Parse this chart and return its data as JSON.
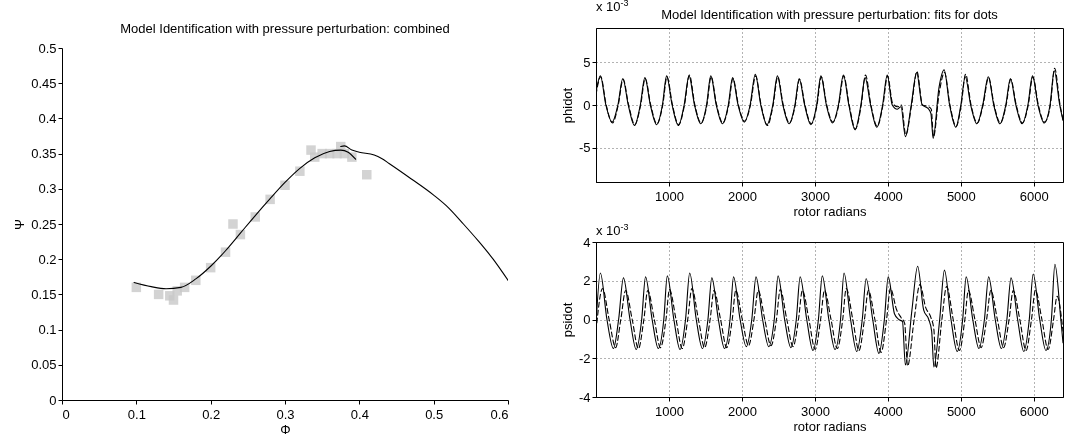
{
  "chart_data": [
    {
      "type": "line",
      "title": "Model Identification with pressure perturbation: combined",
      "xlabel": "Φ",
      "ylabel": "Ψ",
      "xlim": [
        0,
        0.6
      ],
      "ylim": [
        0,
        0.5
      ],
      "xticks": [
        0,
        0.1,
        0.2,
        0.3,
        0.4,
        0.5,
        0.6
      ],
      "yticks": [
        0,
        0.05,
        0.1,
        0.15,
        0.2,
        0.25,
        0.3,
        0.35,
        0.4,
        0.45,
        0.5
      ],
      "grid": false,
      "marker": "none",
      "series": [
        {
          "type": "scatter",
          "marker": "square",
          "color": "#c8c8c8",
          "x": [
            0.1,
            0.13,
            0.145,
            0.155,
            0.165,
            0.15,
            0.18,
            0.2,
            0.22,
            0.23,
            0.24,
            0.26,
            0.28,
            0.3,
            0.32,
            0.335,
            0.34,
            0.35,
            0.36,
            0.37,
            0.38,
            0.375,
            0.39,
            0.41
          ],
          "values": [
            0.16,
            0.15,
            0.148,
            0.155,
            0.16,
            0.142,
            0.17,
            0.188,
            0.21,
            0.25,
            0.235,
            0.26,
            0.285,
            0.305,
            0.325,
            0.355,
            0.345,
            0.35,
            0.35,
            0.35,
            0.35,
            0.36,
            0.345,
            0.32
          ]
        },
        {
          "color": "#000000",
          "line_style": "solid",
          "x": [
            0.097,
            0.12,
            0.14,
            0.16,
            0.18,
            0.2,
            0.22,
            0.24,
            0.26,
            0.28,
            0.3,
            0.32,
            0.34,
            0.36,
            0.375,
            0.385,
            0.395
          ],
          "values": [
            0.167,
            0.161,
            0.158,
            0.16,
            0.172,
            0.19,
            0.212,
            0.237,
            0.262,
            0.286,
            0.309,
            0.329,
            0.344,
            0.353,
            0.355,
            0.352,
            0.342
          ]
        },
        {
          "color": "#000000",
          "line_style": "solid",
          "x": [
            0.375,
            0.38,
            0.39,
            0.4,
            0.42,
            0.43,
            0.44,
            0.47,
            0.5,
            0.52,
            0.54,
            0.56,
            0.58,
            0.6
          ],
          "values": [
            0.36,
            0.361,
            0.355,
            0.352,
            0.348,
            0.343,
            0.336,
            0.314,
            0.291,
            0.273,
            0.25,
            0.226,
            0.2,
            0.17
          ]
        }
      ]
    },
    {
      "type": "line",
      "title": "Model Identification with pressure perturbation: fits for dots",
      "xlabel": "rotor radians",
      "ylabel": "phidot",
      "annotations": [
        "x 10$^{-3}$"
      ],
      "xlim": [
        0,
        6400
      ],
      "ylim": [
        -9,
        9
      ],
      "xticks": [
        1000,
        2000,
        3000,
        4000,
        5000,
        6000
      ],
      "yticks": [
        -5,
        0,
        5
      ],
      "grid": true,
      "marker": "none",
      "series": [
        {
          "color": "#000000",
          "line_style": "solid",
          "x": [
            0,
            60,
            135,
            220,
            300,
            367,
            442,
            527,
            607,
            670,
            745,
            830,
            910,
            968,
            1043,
            1128,
            1208,
            1275,
            1350,
            1435,
            1515,
            1573,
            1648,
            1733,
            1813,
            1872,
            1947,
            2032,
            2112,
            2183,
            2258,
            2343,
            2423,
            2486,
            2561,
            2646,
            2726,
            2784,
            2859,
            2944,
            3024,
            3082,
            3157,
            3242,
            3322,
            3390,
            3465,
            3550,
            3630,
            3688,
            3763,
            3848,
            3928,
            3991,
            4060,
            4130,
            4180,
            4240,
            4320,
            4394,
            4470,
            4550,
            4590,
            4620,
            4700,
            4771,
            4846,
            4931,
            5000,
            5060,
            5135,
            5220,
            5300,
            5376,
            5451,
            5536,
            5616,
            5679,
            5754,
            5839,
            5919,
            5982,
            6057,
            6142,
            6222,
            6280,
            6355,
            6400
          ],
          "values": [
            1.5,
            3.4,
            0,
            -2.0,
            0,
            3.1,
            0,
            -2.4,
            0,
            3.2,
            0,
            -2.3,
            0,
            3.4,
            0,
            -2.4,
            0,
            3.4,
            0,
            -2.2,
            0,
            3.4,
            0,
            -2.2,
            0,
            3.2,
            0,
            -2.0,
            0,
            3.6,
            0,
            -2.3,
            0,
            3.4,
            0,
            -2.2,
            0,
            3.1,
            0,
            -2.3,
            0,
            3.4,
            0,
            -2.1,
            0,
            3.5,
            0,
            -2.9,
            0,
            3.2,
            0,
            -2.6,
            0,
            3.5,
            0,
            -0.5,
            -0.2,
            -3.7,
            0,
            3.8,
            0,
            -0.4,
            -1.0,
            -3.9,
            2.0,
            4.1,
            0,
            -2.6,
            0,
            3.3,
            0,
            -2.2,
            0,
            3.3,
            0,
            -2.2,
            0,
            3.1,
            0,
            -2.2,
            0,
            3.4,
            0,
            -2.1,
            0,
            4.0,
            0,
            -1.8
          ]
        },
        {
          "color": "#000000",
          "line_style": "dashed",
          "x": [
            0,
            65,
            140,
            225,
            305,
            372,
            447,
            532,
            612,
            675,
            750,
            835,
            915,
            973,
            1048,
            1133,
            1213,
            1280,
            1355,
            1440,
            1520,
            1578,
            1653,
            1738,
            1818,
            1877,
            1952,
            2037,
            2117,
            2188,
            2263,
            2348,
            2428,
            2491,
            2566,
            2651,
            2731,
            2789,
            2864,
            2949,
            3029,
            3087,
            3162,
            3247,
            3327,
            3395,
            3470,
            3555,
            3635,
            3693,
            3768,
            3853,
            3933,
            3996,
            4065,
            4135,
            4185,
            4245,
            4325,
            4399,
            4475,
            4555,
            4595,
            4625,
            4705,
            4776,
            4851,
            4936,
            5005,
            5065,
            5140,
            5225,
            5305,
            5381,
            5456,
            5541,
            5621,
            5684,
            5759,
            5844,
            5924,
            5987,
            6062,
            6147,
            6227,
            6285,
            6360,
            6400
          ],
          "values": [
            1.2,
            3.3,
            0,
            -2.1,
            0,
            3.0,
            0,
            -2.3,
            0,
            3.1,
            0,
            -2.2,
            0,
            3.3,
            0,
            -2.3,
            0,
            3.5,
            0,
            -2.1,
            0,
            3.3,
            0,
            -2.1,
            0,
            3.1,
            0,
            -1.9,
            0,
            3.4,
            0,
            -2.4,
            0,
            3.3,
            0,
            -2.1,
            0,
            3.0,
            0,
            -2.2,
            0,
            3.3,
            0,
            -2.0,
            0,
            3.4,
            0,
            -2.8,
            0,
            3.5,
            0,
            -2.5,
            0,
            3.4,
            0.2,
            -0.2,
            0,
            -3.5,
            0,
            3.9,
            0,
            -0.2,
            -0.5,
            -3.7,
            1.5,
            3.8,
            0,
            -2.5,
            0,
            3.6,
            0,
            -2.1,
            0,
            3.2,
            0,
            -2.1,
            0,
            3.0,
            0,
            -2.1,
            0,
            3.3,
            0,
            -2.0,
            0,
            4.3,
            0,
            -1.7
          ]
        }
      ]
    },
    {
      "type": "line",
      "xlabel": "rotor radians",
      "ylabel": "psidot",
      "annotations": [
        "x 10$^{-3}$"
      ],
      "xlim": [
        0,
        6400
      ],
      "ylim": [
        -4,
        4
      ],
      "xticks": [
        1000,
        2000,
        3000,
        4000,
        5000,
        6000
      ],
      "yticks": [
        -4,
        -2,
        0,
        2,
        4
      ],
      "grid": true,
      "marker": "none",
      "series": [
        {
          "color": "#000000",
          "line_style": "solid",
          "x": [
            0,
            60,
            150,
            239,
            310,
            376,
            466,
            551,
            626,
            679,
            769,
            854,
            929,
            977,
            1067,
            1152,
            1227,
            1284,
            1374,
            1459,
            1534,
            1587,
            1677,
            1762,
            1837,
            1885,
            1975,
            2060,
            2135,
            2193,
            2283,
            2368,
            2443,
            2495,
            2585,
            2670,
            2745,
            2798,
            2888,
            2973,
            3048,
            3101,
            3191,
            3276,
            3351,
            3399,
            3489,
            3574,
            3649,
            3702,
            3792,
            3877,
            3952,
            4005,
            4090,
            4150,
            4200,
            4240,
            4330,
            4408,
            4490,
            4560,
            4600,
            4630,
            4710,
            4775,
            4865,
            4950,
            5025,
            5073,
            5163,
            5248,
            5323,
            5381,
            5471,
            5556,
            5631,
            5688,
            5778,
            5863,
            5938,
            5991,
            6081,
            6166,
            6241,
            6289,
            6370,
            6400
          ],
          "values": [
            -0.3,
            2.4,
            0,
            -1.5,
            0,
            2.15,
            0,
            -1.55,
            0,
            2.2,
            0,
            -1.5,
            0,
            2.25,
            0,
            -1.55,
            0,
            2.4,
            0,
            -1.5,
            0,
            2.15,
            0,
            -1.5,
            0,
            2.2,
            0,
            -1.4,
            0,
            2.2,
            0,
            -1.4,
            0,
            2.25,
            0,
            -1.45,
            0,
            2.2,
            0,
            -1.6,
            0,
            2.25,
            0,
            -1.55,
            0,
            2.4,
            0,
            -1.65,
            0,
            2.1,
            0,
            -1.75,
            0,
            2.2,
            0.3,
            0,
            -0.1,
            -2.35,
            0.5,
            2.75,
            0.5,
            0,
            -0.6,
            -2.45,
            0,
            2.55,
            0,
            -1.65,
            0,
            2.2,
            0,
            -1.5,
            0,
            2.2,
            0,
            -1.5,
            0,
            2.15,
            0,
            -1.65,
            0,
            2.35,
            0,
            -1.6,
            0,
            2.85,
            0,
            -1.2
          ]
        },
        {
          "color": "#000000",
          "line_style": "dashed",
          "x": [
            0,
            90,
            180,
            269,
            340,
            406,
            496,
            581,
            656,
            709,
            799,
            884,
            959,
            1007,
            1097,
            1182,
            1257,
            1314,
            1404,
            1489,
            1564,
            1617,
            1707,
            1792,
            1867,
            1915,
            2005,
            2090,
            2165,
            2223,
            2313,
            2398,
            2473,
            2525,
            2615,
            2700,
            2775,
            2828,
            2918,
            3003,
            3078,
            3131,
            3221,
            3306,
            3381,
            3429,
            3519,
            3604,
            3679,
            3732,
            3822,
            3907,
            3982,
            4035,
            4120,
            4180,
            4230,
            4270,
            4360,
            4438,
            4520,
            4590,
            4630,
            4660,
            4740,
            4805,
            4895,
            4980,
            5055,
            5103,
            5193,
            5278,
            5353,
            5411,
            5501,
            5586,
            5661,
            5718,
            5808,
            5893,
            5968,
            6021,
            6111,
            6196,
            6271,
            6319,
            6400
          ],
          "values": [
            -0.6,
            1.6,
            0,
            -1.45,
            0,
            1.5,
            0,
            -1.5,
            0,
            1.5,
            0,
            -1.45,
            0,
            1.55,
            0,
            -1.5,
            0,
            1.6,
            0,
            -1.45,
            0,
            1.5,
            0,
            -1.45,
            0,
            1.5,
            0,
            -1.35,
            0,
            1.5,
            0,
            -1.35,
            0,
            1.55,
            0,
            -1.4,
            0,
            1.5,
            0,
            -1.55,
            0,
            1.5,
            0,
            -1.5,
            0,
            1.6,
            0,
            -1.6,
            0,
            1.5,
            0,
            -1.7,
            0,
            1.6,
            0.5,
            0.1,
            -0.2,
            -2.4,
            0,
            1.8,
            0.6,
            0.1,
            -0.5,
            -2.5,
            0,
            1.7,
            0,
            -1.6,
            0,
            1.5,
            0,
            -1.45,
            0,
            1.5,
            0,
            -1.45,
            0,
            1.5,
            0,
            -1.6,
            0,
            1.5,
            0,
            -1.55,
            0,
            1.2,
            -0.6
          ]
        }
      ]
    }
  ]
}
